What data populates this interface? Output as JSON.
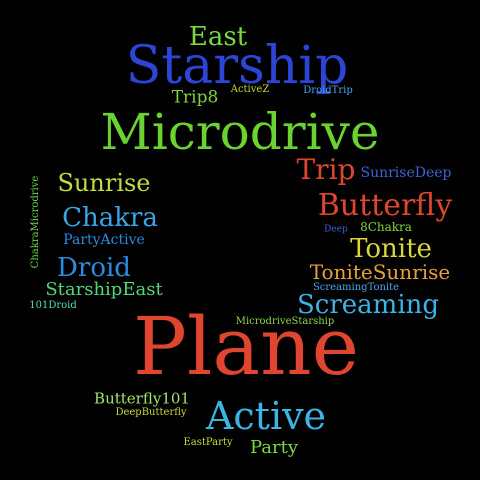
{
  "words": {
    "east": "East",
    "starship": "Starship",
    "trip8": "Trip8",
    "activez": "ActiveZ",
    "droidtrip": "DroidTrip",
    "microdrive": "Microdrive",
    "trip": "Trip",
    "sunrisedeep": "SunriseDeep",
    "sunrise": "Sunrise",
    "chakramicrodrive": "ChakraMicrodrive",
    "butterfly": "Butterfly",
    "chakra": "Chakra",
    "eight_chakra": "8Chakra",
    "partyactive": "PartyActive",
    "deep": "Deep",
    "tonite": "Tonite",
    "droid": "Droid",
    "tonitesunrise": "ToniteSunrise",
    "starshipeast": "StarshipEast",
    "screamingtonite": "ScreamingTonite",
    "droid101": "101Droid",
    "screaming": "Screaming",
    "microdrivestarship": "MicrodriveStarship",
    "plane": "Plane",
    "butterfly101": "Butterfly101",
    "deepbutterfly": "DeepButterfly",
    "active": "Active",
    "eastparty": "EastParty",
    "party": "Party"
  },
  "colors": {
    "background": "#000000",
    "red": "#e0462f",
    "green": "#6ad32f",
    "blue": "#2d45d6",
    "sky": "#3cb4e6",
    "yellow": "#d9d73a",
    "orange": "#e8a13a"
  }
}
